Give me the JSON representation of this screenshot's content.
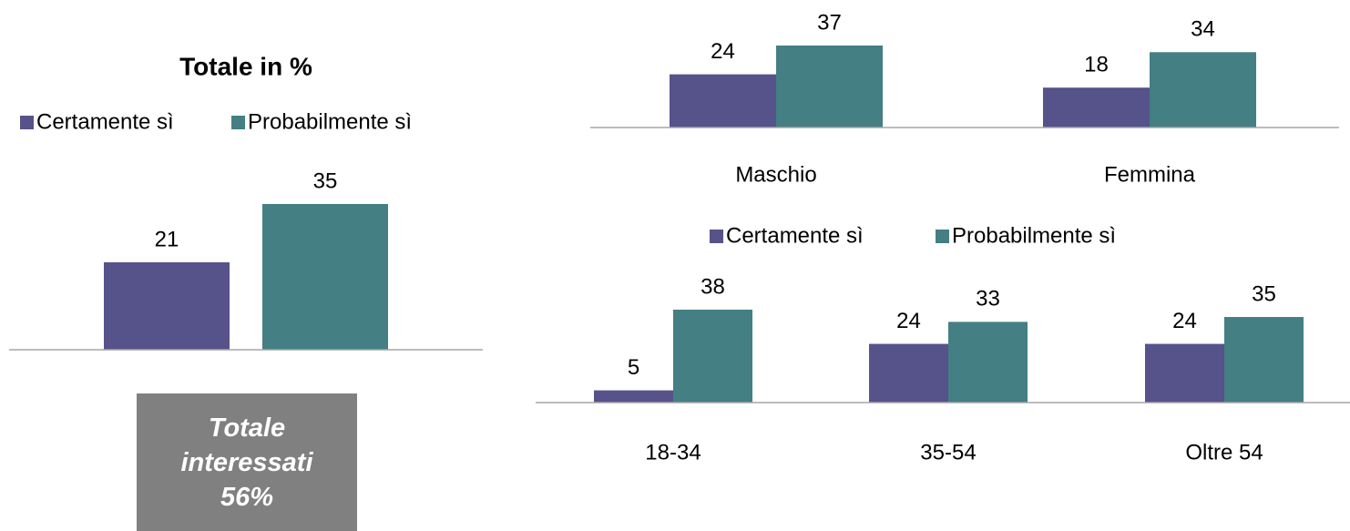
{
  "chart_data": [
    {
      "type": "bar",
      "title": "Totale in %",
      "categories": [
        null
      ],
      "series": [
        {
          "name": "Certamente sì",
          "color": "#56528a",
          "values": [
            21
          ]
        },
        {
          "name": "Probabilmente sì",
          "color": "#437f83",
          "values": [
            35
          ]
        }
      ],
      "ylim": [
        0,
        40
      ],
      "annotation": "Totale interessati 56%"
    },
    {
      "type": "bar",
      "categories": [
        "Maschio",
        "Femmina"
      ],
      "series": [
        {
          "color": "#56528a",
          "values": [
            24,
            18
          ]
        },
        {
          "color": "#437f83",
          "values": [
            37,
            34
          ]
        }
      ],
      "ylim": [
        0,
        40
      ]
    },
    {
      "type": "bar",
      "categories": [
        "18-34",
        "35-54",
        "Oltre 54"
      ],
      "series": [
        {
          "name": "Certamente sì",
          "color": "#56528a",
          "values": [
            5,
            24,
            24
          ]
        },
        {
          "name": "Probabilmente sì",
          "color": "#437f83",
          "values": [
            38,
            33,
            35
          ]
        }
      ],
      "ylim": [
        0,
        40
      ]
    }
  ]
}
